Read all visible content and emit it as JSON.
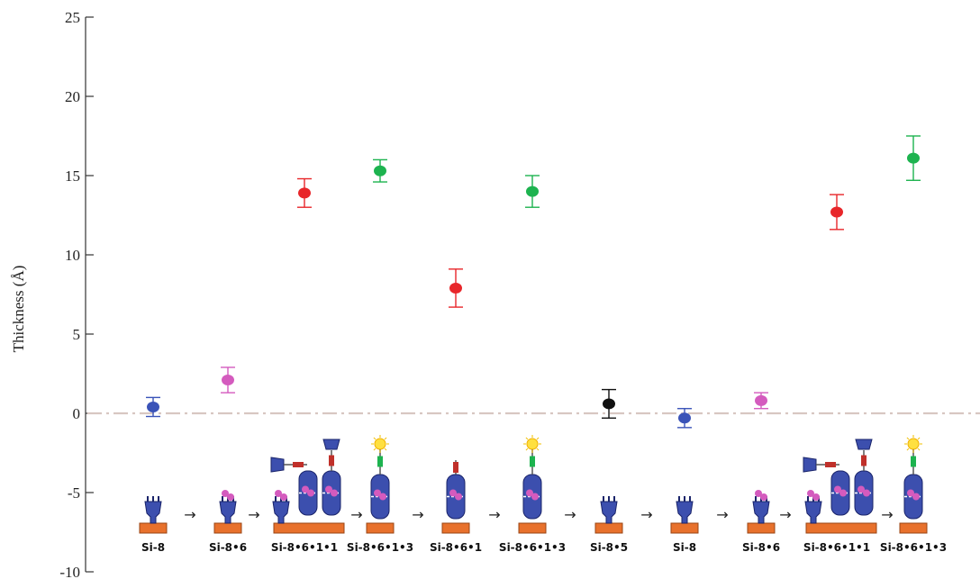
{
  "chart_data": {
    "type": "scatter",
    "title": "",
    "xlabel": "",
    "ylabel": "Thickness (Å)",
    "ylim": [
      -10,
      25
    ],
    "yticks": [
      -10,
      -5,
      0,
      5,
      10,
      15,
      20,
      25
    ],
    "grid": false,
    "legend": "none",
    "reference_line": {
      "y": 0,
      "style": "dash-dot",
      "color": "#d8c7c2"
    },
    "points": [
      {
        "label": "Si-8",
        "y": 0.4,
        "err": 0.6,
        "color": "#3a53b8"
      },
      {
        "label": "Si-8•6",
        "y": 2.1,
        "err": 0.8,
        "color": "#d45bbe"
      },
      {
        "label": "Si-8•6•1•1",
        "y": 13.9,
        "err": 0.9,
        "color": "#e8262a"
      },
      {
        "label": "Si-8•6•1•3",
        "y": 15.3,
        "err": 0.7,
        "color": "#1db34f"
      },
      {
        "label": "Si-8•6•1",
        "y": 7.9,
        "err": 1.2,
        "color": "#e8262a"
      },
      {
        "label": "Si-8•6•1•3",
        "y": 14.0,
        "err": 1.0,
        "color": "#1db34f"
      },
      {
        "label": "Si-8•5",
        "y": 0.6,
        "err": 0.9,
        "color": "#111111"
      },
      {
        "label": "Si-8",
        "y": -0.3,
        "err": 0.6,
        "color": "#3a53b8"
      },
      {
        "label": "Si-8•6",
        "y": 0.8,
        "err": 0.5,
        "color": "#d45bbe"
      },
      {
        "label": "Si-8•6•1•1",
        "y": 12.7,
        "err": 1.1,
        "color": "#e8262a"
      },
      {
        "label": "Si-8•6•1•3",
        "y": 16.1,
        "err": 1.4,
        "color": "#1db34f"
      }
    ]
  }
}
